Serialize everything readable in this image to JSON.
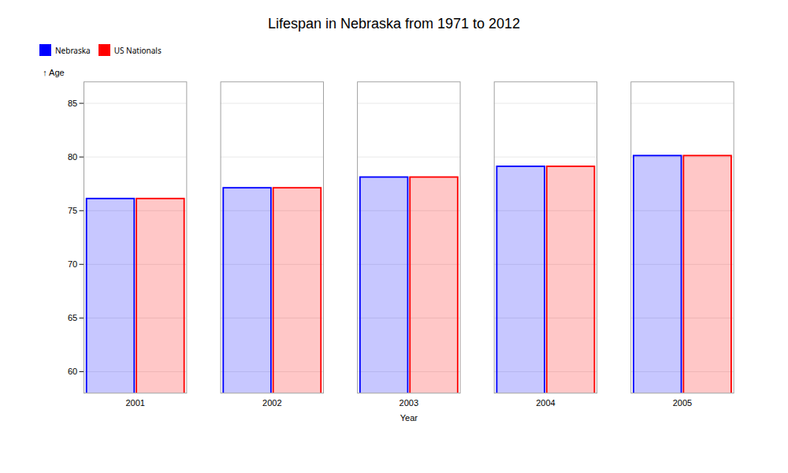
{
  "chart_data": {
    "type": "bar",
    "title": "Lifespan in Nebraska from 1971 to 2012",
    "xlabel": "Year",
    "ylabel": "Age",
    "categories": [
      "2001",
      "2002",
      "2003",
      "2004",
      "2005"
    ],
    "series": [
      {
        "name": "Nebraska",
        "color": "#0000ff",
        "values": [
          76.1,
          77.1,
          78.1,
          79.1,
          80.1
        ]
      },
      {
        "name": "US Nationals",
        "color": "#ff0000",
        "values": [
          76.1,
          77.1,
          78.1,
          79.1,
          80.1
        ]
      }
    ],
    "ylim": [
      58,
      87
    ],
    "yticks": [
      60,
      65,
      70,
      75,
      80,
      85
    ],
    "grid": true,
    "legend": "top"
  }
}
